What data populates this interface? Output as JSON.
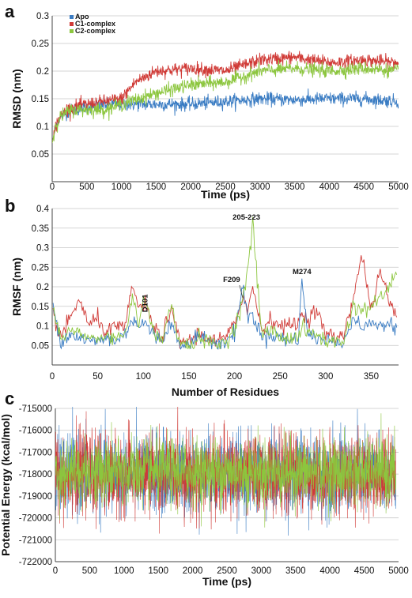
{
  "colors": {
    "Apo": "#3a7cc3",
    "C1-complex": "#d03a36",
    "C2-complex": "#8cc63e"
  },
  "chart_data": [
    {
      "panel": "a",
      "type": "line",
      "xlabel": "Time (ps)",
      "ylabel": "RMSD (nm)",
      "xlim": [
        0,
        5000
      ],
      "ylim": [
        0,
        0.3
      ],
      "xticks": [
        0,
        500,
        1000,
        1500,
        2000,
        2500,
        3000,
        3500,
        4000,
        4500,
        5000
      ],
      "yticks": [
        0.05,
        0.1,
        0.15,
        0.2,
        0.25,
        0.3
      ],
      "ytick_labels": [
        "0.05",
        "0.1",
        "0.15",
        "0.2",
        "0.25",
        "0.3"
      ],
      "grid": true,
      "legend": "top-left",
      "series": [
        {
          "name": "Apo",
          "x": [
            0,
            50,
            100,
            200,
            300,
            500,
            750,
            1000,
            1500,
            2000,
            2500,
            3000,
            3500,
            4000,
            4500,
            5000
          ],
          "values": [
            0.07,
            0.1,
            0.115,
            0.125,
            0.13,
            0.135,
            0.14,
            0.14,
            0.14,
            0.14,
            0.145,
            0.15,
            0.148,
            0.15,
            0.15,
            0.145
          ]
        },
        {
          "name": "C1-complex",
          "x": [
            0,
            50,
            100,
            200,
            300,
            500,
            750,
            1000,
            1200,
            1500,
            2000,
            2500,
            3000,
            3500,
            4000,
            4500,
            5000
          ],
          "values": [
            0.07,
            0.1,
            0.115,
            0.13,
            0.135,
            0.14,
            0.145,
            0.15,
            0.18,
            0.2,
            0.205,
            0.2,
            0.22,
            0.225,
            0.215,
            0.22,
            0.215
          ]
        },
        {
          "name": "C2-complex",
          "x": [
            0,
            50,
            100,
            200,
            300,
            500,
            750,
            1000,
            1500,
            2000,
            2500,
            3000,
            3500,
            4000,
            4500,
            5000
          ],
          "values": [
            0.07,
            0.1,
            0.115,
            0.125,
            0.13,
            0.13,
            0.13,
            0.14,
            0.16,
            0.175,
            0.18,
            0.2,
            0.205,
            0.2,
            0.205,
            0.2
          ]
        }
      ]
    },
    {
      "panel": "b",
      "type": "line",
      "xlabel": "Number of Residues",
      "ylabel": "RMSF (nm)",
      "xlim": [
        0,
        380
      ],
      "ylim": [
        0,
        0.4
      ],
      "xticks": [
        0,
        50,
        100,
        150,
        200,
        250,
        300,
        350
      ],
      "yticks": [
        0.05,
        0.1,
        0.15,
        0.2,
        0.25,
        0.3,
        0.35,
        0.4
      ],
      "ytick_labels": [
        "0.05",
        "0.1",
        "0.15",
        "0.2",
        "0.25",
        "0.3",
        "0.35",
        "0.4"
      ],
      "grid": true,
      "annotations": [
        {
          "text": "D101",
          "x": 101,
          "y": 0.17
        },
        {
          "text": "205-223",
          "x": 220,
          "y": 0.36
        },
        {
          "text": "F209",
          "x": 209,
          "y": 0.2
        },
        {
          "text": "M274",
          "x": 274,
          "y": 0.22
        }
      ],
      "series": [
        {
          "name": "Apo",
          "x": [
            1,
            10,
            20,
            30,
            40,
            50,
            60,
            70,
            80,
            88,
            95,
            101,
            110,
            120,
            130,
            140,
            150,
            160,
            170,
            180,
            190,
            200,
            209,
            215,
            220,
            230,
            240,
            250,
            260,
            270,
            274,
            280,
            290,
            300,
            310,
            320,
            330,
            340,
            350,
            360,
            370,
            378
          ],
          "values": [
            0.15,
            0.06,
            0.08,
            0.07,
            0.06,
            0.06,
            0.07,
            0.06,
            0.08,
            0.12,
            0.1,
            0.11,
            0.08,
            0.06,
            0.11,
            0.05,
            0.05,
            0.07,
            0.06,
            0.05,
            0.06,
            0.08,
            0.2,
            0.12,
            0.13,
            0.07,
            0.08,
            0.07,
            0.06,
            0.07,
            0.22,
            0.08,
            0.07,
            0.06,
            0.06,
            0.06,
            0.12,
            0.1,
            0.11,
            0.1,
            0.1,
            0.09
          ]
        },
        {
          "name": "C1-complex",
          "x": [
            1,
            10,
            20,
            30,
            40,
            50,
            60,
            70,
            80,
            88,
            95,
            101,
            110,
            120,
            130,
            140,
            150,
            160,
            170,
            180,
            190,
            200,
            209,
            215,
            220,
            230,
            240,
            250,
            260,
            270,
            274,
            280,
            290,
            300,
            310,
            320,
            330,
            340,
            350,
            360,
            370,
            378
          ],
          "values": [
            0.13,
            0.07,
            0.12,
            0.17,
            0.1,
            0.12,
            0.08,
            0.1,
            0.09,
            0.21,
            0.14,
            0.16,
            0.1,
            0.07,
            0.14,
            0.06,
            0.06,
            0.08,
            0.07,
            0.06,
            0.07,
            0.1,
            0.18,
            0.14,
            0.2,
            0.09,
            0.12,
            0.1,
            0.1,
            0.11,
            0.13,
            0.12,
            0.14,
            0.08,
            0.07,
            0.08,
            0.17,
            0.28,
            0.14,
            0.24,
            0.16,
            0.12
          ]
        },
        {
          "name": "C2-complex",
          "x": [
            1,
            10,
            20,
            30,
            40,
            50,
            60,
            70,
            80,
            88,
            95,
            101,
            110,
            120,
            130,
            140,
            150,
            160,
            170,
            180,
            190,
            200,
            209,
            215,
            220,
            230,
            240,
            250,
            260,
            270,
            274,
            280,
            290,
            300,
            310,
            320,
            330,
            340,
            350,
            360,
            370,
            378
          ],
          "values": [
            0.15,
            0.06,
            0.09,
            0.08,
            0.07,
            0.07,
            0.07,
            0.07,
            0.08,
            0.18,
            0.11,
            0.17,
            0.09,
            0.06,
            0.15,
            0.05,
            0.05,
            0.07,
            0.06,
            0.05,
            0.06,
            0.09,
            0.17,
            0.25,
            0.36,
            0.08,
            0.09,
            0.07,
            0.07,
            0.07,
            0.1,
            0.08,
            0.08,
            0.06,
            0.06,
            0.06,
            0.15,
            0.14,
            0.15,
            0.17,
            0.2,
            0.24
          ]
        }
      ]
    },
    {
      "panel": "c",
      "type": "line",
      "xlabel": "Time (ps)",
      "ylabel": "Potential Energy (kcal/mol)",
      "xlim": [
        0,
        5000
      ],
      "ylim": [
        -722000,
        -715000
      ],
      "xticks": [
        0,
        500,
        1000,
        1500,
        2000,
        2500,
        3000,
        3500,
        4000,
        4500,
        5000
      ],
      "yticks": [
        -722000,
        -721000,
        -720000,
        -719000,
        -718000,
        -717000,
        -716000,
        -715000
      ],
      "ytick_labels": [
        "-722000",
        "-721000",
        "-720000",
        "-719000",
        "-718000",
        "-717000",
        "-716000",
        "-715000"
      ],
      "grid": true,
      "series": [
        {
          "name": "Apo",
          "mean": -718000,
          "spread": 1800
        },
        {
          "name": "C1-complex",
          "mean": -718000,
          "spread": 1800
        },
        {
          "name": "C2-complex",
          "mean": -717900,
          "spread": 1500
        }
      ]
    }
  ]
}
